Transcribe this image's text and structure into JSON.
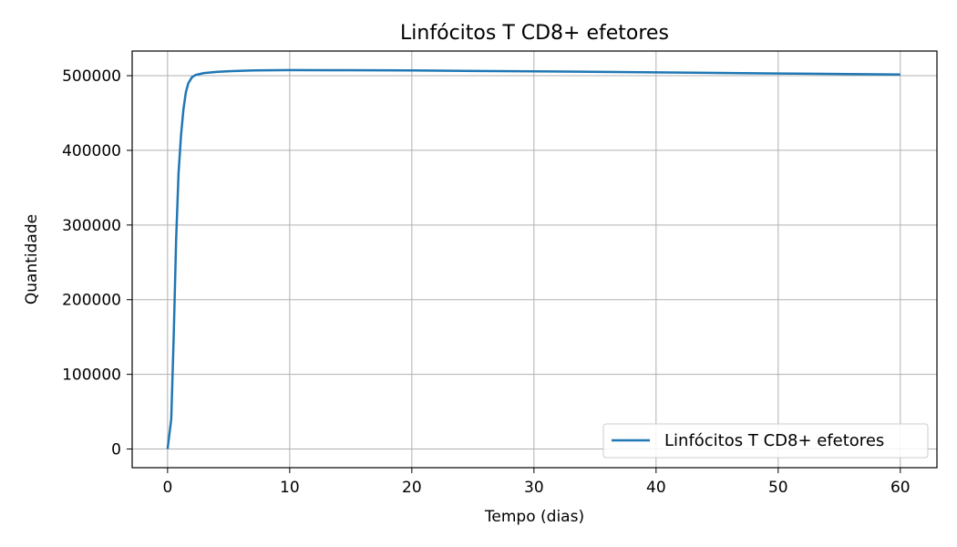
{
  "chart_data": {
    "type": "line",
    "title": "Linfócitos T CD8+ efetores",
    "xlabel": "Tempo (dias)",
    "ylabel": "Quantidade",
    "xlim": [
      -2.9,
      63
    ],
    "ylim": [
      -25000,
      533000
    ],
    "xticks": [
      0,
      10,
      20,
      30,
      40,
      50,
      60
    ],
    "yticks": [
      0,
      100000,
      200000,
      300000,
      400000,
      500000
    ],
    "xtick_labels": [
      "0",
      "10",
      "20",
      "30",
      "40",
      "50",
      "60"
    ],
    "ytick_labels": [
      "0",
      "100000",
      "200000",
      "300000",
      "400000",
      "500000"
    ],
    "grid": true,
    "legend_position": "lower-right",
    "series": [
      {
        "name": "Linfócitos T CD8+ efetores",
        "color": "#1f77b4",
        "x": [
          0,
          0.3,
          0.5,
          0.7,
          0.9,
          1.1,
          1.3,
          1.5,
          1.7,
          2.0,
          2.3,
          2.7,
          3,
          4,
          5,
          7,
          10,
          13,
          20,
          30,
          40,
          50,
          60
        ],
        "y": [
          0,
          40000,
          150000,
          280000,
          370000,
          420000,
          455000,
          478000,
          490000,
          498000,
          501000,
          502500,
          503500,
          505000,
          506000,
          507000,
          507500,
          507400,
          507000,
          505800,
          504500,
          503000,
          501500
        ]
      }
    ]
  }
}
